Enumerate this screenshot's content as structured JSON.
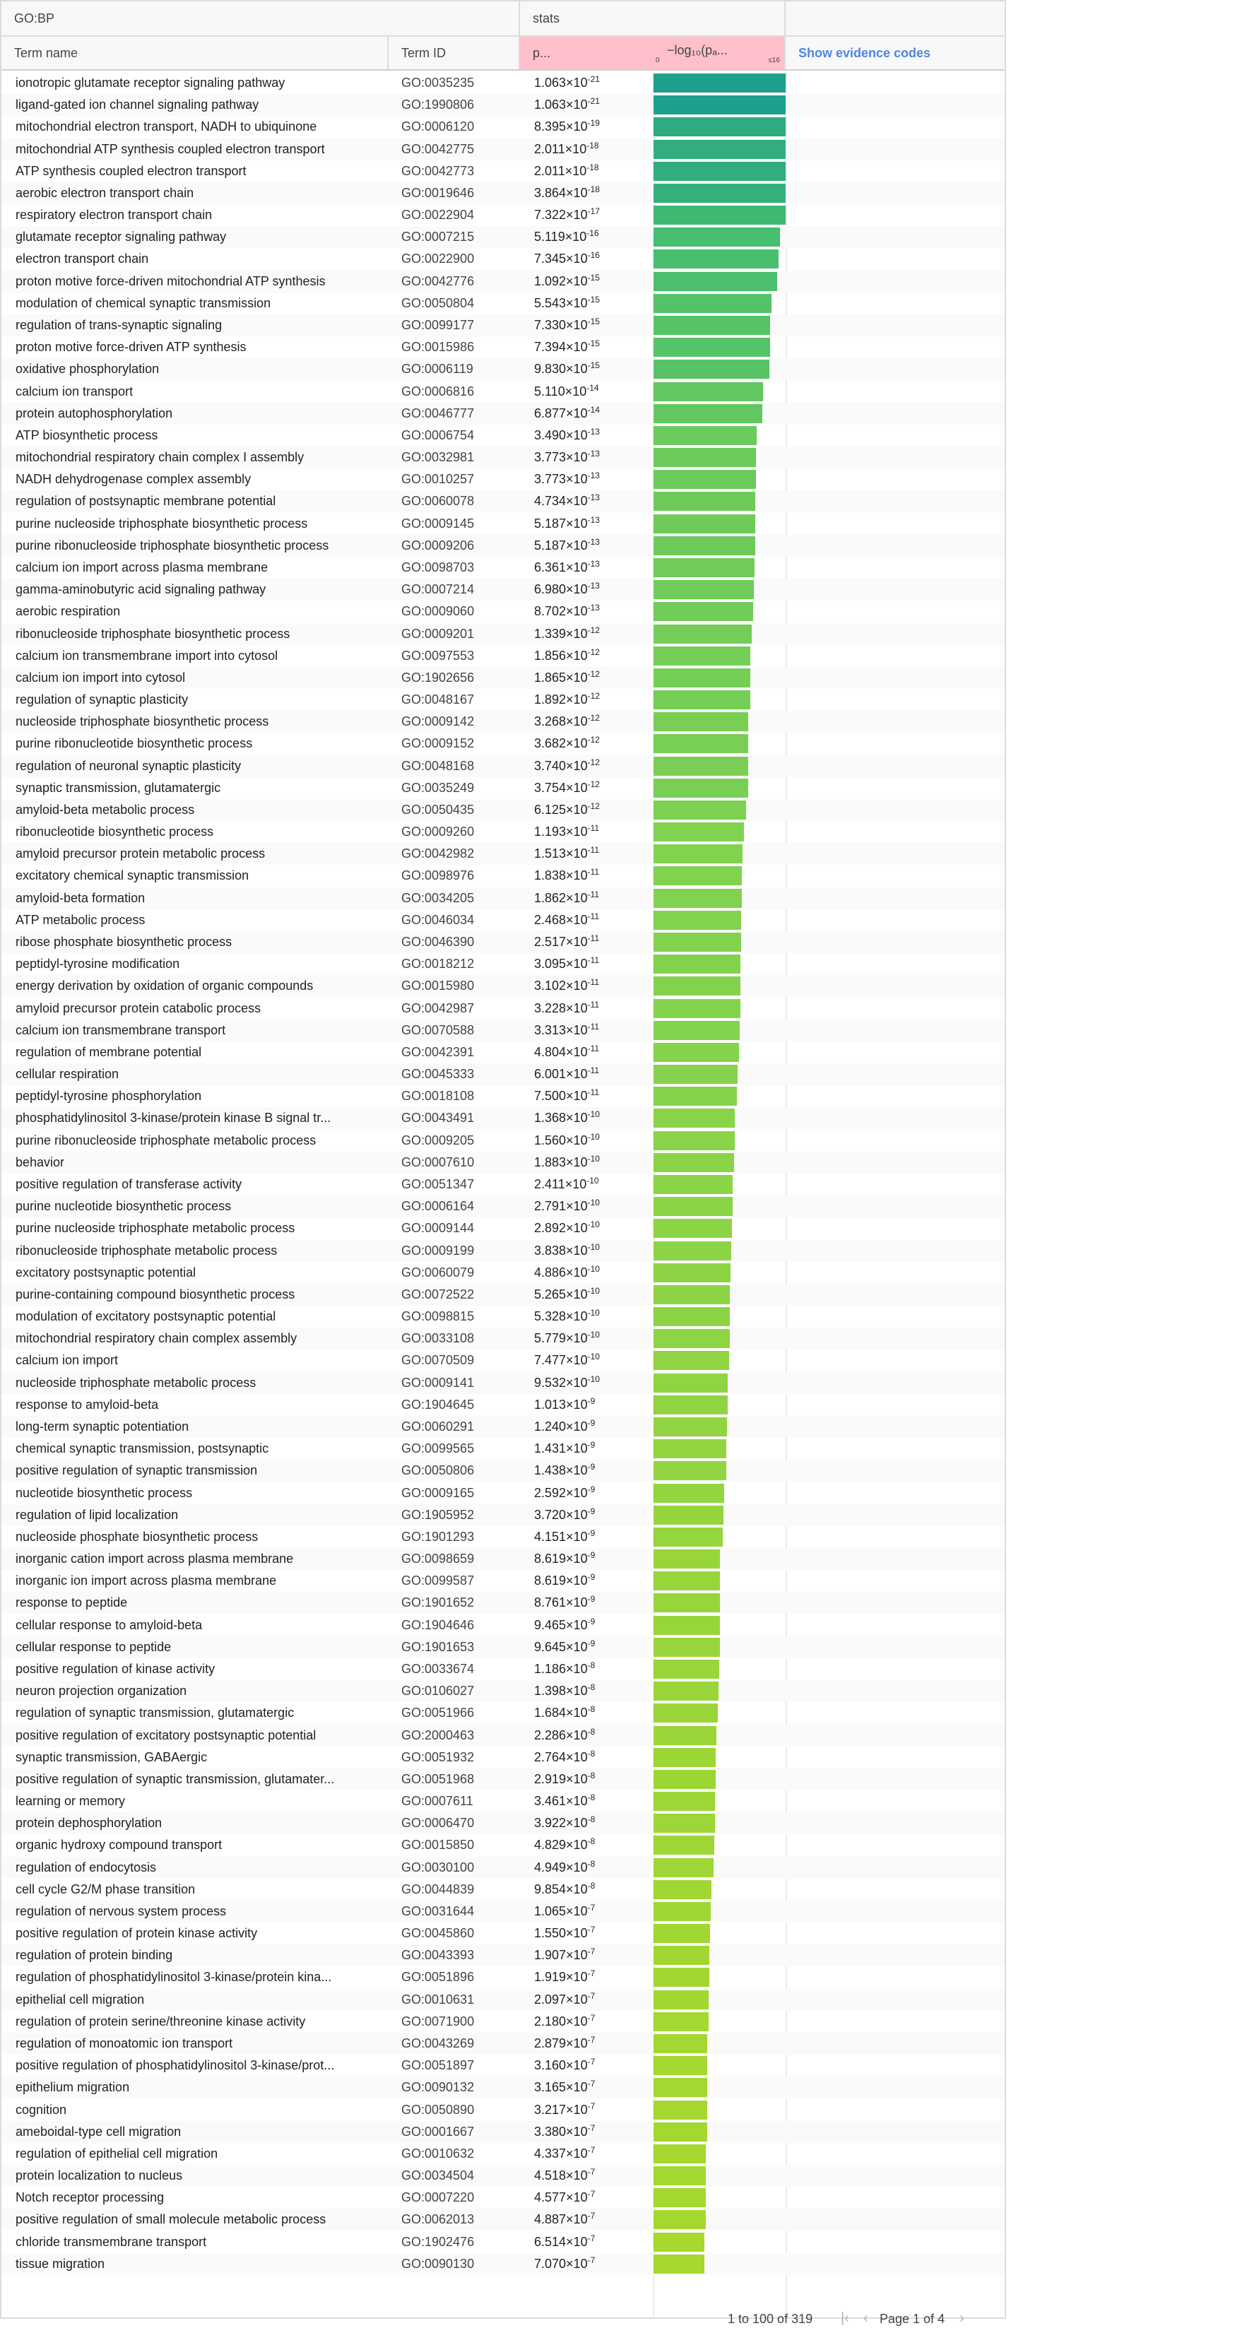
{
  "group_headers": {
    "left": "GO:BP",
    "stats": "stats"
  },
  "columns": {
    "term_name": "Term name",
    "term_id": "Term ID",
    "p": "p...",
    "log_label": "−log₁₀(pₐ...",
    "axis_min": "0",
    "axis_max": "≤16",
    "evidence": "Show evidence codes"
  },
  "axis": {
    "max": 16
  },
  "rows": [
    [
      "ionotropic glutamate receptor signaling pathway",
      "GO:0035235",
      "1.063",
      "-21"
    ],
    [
      "ligand-gated ion channel signaling pathway",
      "GO:1990806",
      "1.063",
      "-21"
    ],
    [
      "mitochondrial electron transport, NADH to ubiquinone",
      "GO:0006120",
      "8.395",
      "-19"
    ],
    [
      "mitochondrial ATP synthesis coupled electron transport",
      "GO:0042775",
      "2.011",
      "-18"
    ],
    [
      "ATP synthesis coupled electron transport",
      "GO:0042773",
      "2.011",
      "-18"
    ],
    [
      "aerobic electron transport chain",
      "GO:0019646",
      "3.864",
      "-18"
    ],
    [
      "respiratory electron transport chain",
      "GO:0022904",
      "7.322",
      "-17"
    ],
    [
      "glutamate receptor signaling pathway",
      "GO:0007215",
      "5.119",
      "-16"
    ],
    [
      "electron transport chain",
      "GO:0022900",
      "7.345",
      "-16"
    ],
    [
      "proton motive force-driven mitochondrial ATP synthesis",
      "GO:0042776",
      "1.092",
      "-15"
    ],
    [
      "modulation of chemical synaptic transmission",
      "GO:0050804",
      "5.543",
      "-15"
    ],
    [
      "regulation of trans-synaptic signaling",
      "GO:0099177",
      "7.330",
      "-15"
    ],
    [
      "proton motive force-driven ATP synthesis",
      "GO:0015986",
      "7.394",
      "-15"
    ],
    [
      "oxidative phosphorylation",
      "GO:0006119",
      "9.830",
      "-15"
    ],
    [
      "calcium ion transport",
      "GO:0006816",
      "5.110",
      "-14"
    ],
    [
      "protein autophosphorylation",
      "GO:0046777",
      "6.877",
      "-14"
    ],
    [
      "ATP biosynthetic process",
      "GO:0006754",
      "3.490",
      "-13"
    ],
    [
      "mitochondrial respiratory chain complex I assembly",
      "GO:0032981",
      "3.773",
      "-13"
    ],
    [
      "NADH dehydrogenase complex assembly",
      "GO:0010257",
      "3.773",
      "-13"
    ],
    [
      "regulation of postsynaptic membrane potential",
      "GO:0060078",
      "4.734",
      "-13"
    ],
    [
      "purine nucleoside triphosphate biosynthetic process",
      "GO:0009145",
      "5.187",
      "-13"
    ],
    [
      "purine ribonucleoside triphosphate biosynthetic process",
      "GO:0009206",
      "5.187",
      "-13"
    ],
    [
      "calcium ion import across plasma membrane",
      "GO:0098703",
      "6.361",
      "-13"
    ],
    [
      "gamma-aminobutyric acid signaling pathway",
      "GO:0007214",
      "6.980",
      "-13"
    ],
    [
      "aerobic respiration",
      "GO:0009060",
      "8.702",
      "-13"
    ],
    [
      "ribonucleoside triphosphate biosynthetic process",
      "GO:0009201",
      "1.339",
      "-12"
    ],
    [
      "calcium ion transmembrane import into cytosol",
      "GO:0097553",
      "1.856",
      "-12"
    ],
    [
      "calcium ion import into cytosol",
      "GO:1902656",
      "1.865",
      "-12"
    ],
    [
      "regulation of synaptic plasticity",
      "GO:0048167",
      "1.892",
      "-12"
    ],
    [
      "nucleoside triphosphate biosynthetic process",
      "GO:0009142",
      "3.268",
      "-12"
    ],
    [
      "purine ribonucleotide biosynthetic process",
      "GO:0009152",
      "3.682",
      "-12"
    ],
    [
      "regulation of neuronal synaptic plasticity",
      "GO:0048168",
      "3.740",
      "-12"
    ],
    [
      "synaptic transmission, glutamatergic",
      "GO:0035249",
      "3.754",
      "-12"
    ],
    [
      "amyloid-beta metabolic process",
      "GO:0050435",
      "6.125",
      "-12"
    ],
    [
      "ribonucleotide biosynthetic process",
      "GO:0009260",
      "1.193",
      "-11"
    ],
    [
      "amyloid precursor protein metabolic process",
      "GO:0042982",
      "1.513",
      "-11"
    ],
    [
      "excitatory chemical synaptic transmission",
      "GO:0098976",
      "1.838",
      "-11"
    ],
    [
      "amyloid-beta formation",
      "GO:0034205",
      "1.862",
      "-11"
    ],
    [
      "ATP metabolic process",
      "GO:0046034",
      "2.468",
      "-11"
    ],
    [
      "ribose phosphate biosynthetic process",
      "GO:0046390",
      "2.517",
      "-11"
    ],
    [
      "peptidyl-tyrosine modification",
      "GO:0018212",
      "3.095",
      "-11"
    ],
    [
      "energy derivation by oxidation of organic compounds",
      "GO:0015980",
      "3.102",
      "-11"
    ],
    [
      "amyloid precursor protein catabolic process",
      "GO:0042987",
      "3.228",
      "-11"
    ],
    [
      "calcium ion transmembrane transport",
      "GO:0070588",
      "3.313",
      "-11"
    ],
    [
      "regulation of membrane potential",
      "GO:0042391",
      "4.804",
      "-11"
    ],
    [
      "cellular respiration",
      "GO:0045333",
      "6.001",
      "-11"
    ],
    [
      "peptidyl-tyrosine phosphorylation",
      "GO:0018108",
      "7.500",
      "-11"
    ],
    [
      "phosphatidylinositol 3-kinase/protein kinase B signal tr...",
      "GO:0043491",
      "1.368",
      "-10"
    ],
    [
      "purine ribonucleoside triphosphate metabolic process",
      "GO:0009205",
      "1.560",
      "-10"
    ],
    [
      "behavior",
      "GO:0007610",
      "1.883",
      "-10"
    ],
    [
      "positive regulation of transferase activity",
      "GO:0051347",
      "2.411",
      "-10"
    ],
    [
      "purine nucleotide biosynthetic process",
      "GO:0006164",
      "2.791",
      "-10"
    ],
    [
      "purine nucleoside triphosphate metabolic process",
      "GO:0009144",
      "2.892",
      "-10"
    ],
    [
      "ribonucleoside triphosphate metabolic process",
      "GO:0009199",
      "3.838",
      "-10"
    ],
    [
      "excitatory postsynaptic potential",
      "GO:0060079",
      "4.886",
      "-10"
    ],
    [
      "purine-containing compound biosynthetic process",
      "GO:0072522",
      "5.265",
      "-10"
    ],
    [
      "modulation of excitatory postsynaptic potential",
      "GO:0098815",
      "5.328",
      "-10"
    ],
    [
      "mitochondrial respiratory chain complex assembly",
      "GO:0033108",
      "5.779",
      "-10"
    ],
    [
      "calcium ion import",
      "GO:0070509",
      "7.477",
      "-10"
    ],
    [
      "nucleoside triphosphate metabolic process",
      "GO:0009141",
      "9.532",
      "-10"
    ],
    [
      "response to amyloid-beta",
      "GO:1904645",
      "1.013",
      "-9"
    ],
    [
      "long-term synaptic potentiation",
      "GO:0060291",
      "1.240",
      "-9"
    ],
    [
      "chemical synaptic transmission, postsynaptic",
      "GO:0099565",
      "1.431",
      "-9"
    ],
    [
      "positive regulation of synaptic transmission",
      "GO:0050806",
      "1.438",
      "-9"
    ],
    [
      "nucleotide biosynthetic process",
      "GO:0009165",
      "2.592",
      "-9"
    ],
    [
      "regulation of lipid localization",
      "GO:1905952",
      "3.720",
      "-9"
    ],
    [
      "nucleoside phosphate biosynthetic process",
      "GO:1901293",
      "4.151",
      "-9"
    ],
    [
      "inorganic cation import across plasma membrane",
      "GO:0098659",
      "8.619",
      "-9"
    ],
    [
      "inorganic ion import across plasma membrane",
      "GO:0099587",
      "8.619",
      "-9"
    ],
    [
      "response to peptide",
      "GO:1901652",
      "8.761",
      "-9"
    ],
    [
      "cellular response to amyloid-beta",
      "GO:1904646",
      "9.465",
      "-9"
    ],
    [
      "cellular response to peptide",
      "GO:1901653",
      "9.645",
      "-9"
    ],
    [
      "positive regulation of kinase activity",
      "GO:0033674",
      "1.186",
      "-8"
    ],
    [
      "neuron projection organization",
      "GO:0106027",
      "1.398",
      "-8"
    ],
    [
      "regulation of synaptic transmission, glutamatergic",
      "GO:0051966",
      "1.684",
      "-8"
    ],
    [
      "positive regulation of excitatory postsynaptic potential",
      "GO:2000463",
      "2.286",
      "-8"
    ],
    [
      "synaptic transmission, GABAergic",
      "GO:0051932",
      "2.764",
      "-8"
    ],
    [
      "positive regulation of synaptic transmission, glutamater...",
      "GO:0051968",
      "2.919",
      "-8"
    ],
    [
      "learning or memory",
      "GO:0007611",
      "3.461",
      "-8"
    ],
    [
      "protein dephosphorylation",
      "GO:0006470",
      "3.922",
      "-8"
    ],
    [
      "organic hydroxy compound transport",
      "GO:0015850",
      "4.829",
      "-8"
    ],
    [
      "regulation of endocytosis",
      "GO:0030100",
      "4.949",
      "-8"
    ],
    [
      "cell cycle G2/M phase transition",
      "GO:0044839",
      "9.854",
      "-8"
    ],
    [
      "regulation of nervous system process",
      "GO:0031644",
      "1.065",
      "-7"
    ],
    [
      "positive regulation of protein kinase activity",
      "GO:0045860",
      "1.550",
      "-7"
    ],
    [
      "regulation of protein binding",
      "GO:0043393",
      "1.907",
      "-7"
    ],
    [
      "regulation of phosphatidylinositol 3-kinase/protein kina...",
      "GO:0051896",
      "1.919",
      "-7"
    ],
    [
      "epithelial cell migration",
      "GO:0010631",
      "2.097",
      "-7"
    ],
    [
      "regulation of protein serine/threonine kinase activity",
      "GO:0071900",
      "2.180",
      "-7"
    ],
    [
      "regulation of monoatomic ion transport",
      "GO:0043269",
      "2.879",
      "-7"
    ],
    [
      "positive regulation of phosphatidylinositol 3-kinase/prot...",
      "GO:0051897",
      "3.160",
      "-7"
    ],
    [
      "epithelium migration",
      "GO:0090132",
      "3.165",
      "-7"
    ],
    [
      "cognition",
      "GO:0050890",
      "3.217",
      "-7"
    ],
    [
      "ameboidal-type cell migration",
      "GO:0001667",
      "3.380",
      "-7"
    ],
    [
      "regulation of epithelial cell migration",
      "GO:0010632",
      "4.337",
      "-7"
    ],
    [
      "protein localization to nucleus",
      "GO:0034504",
      "4.518",
      "-7"
    ],
    [
      "Notch receptor processing",
      "GO:0007220",
      "4.577",
      "-7"
    ],
    [
      "positive regulation of small molecule metabolic process",
      "GO:0062013",
      "4.887",
      "-7"
    ],
    [
      "chloride transmembrane transport",
      "GO:1902476",
      "6.514",
      "-7"
    ],
    [
      "tissue migration",
      "GO:0090130",
      "7.070",
      "-7"
    ]
  ],
  "footer": {
    "count": "1 to 100 of 319",
    "page": "Page 1 of 4"
  }
}
